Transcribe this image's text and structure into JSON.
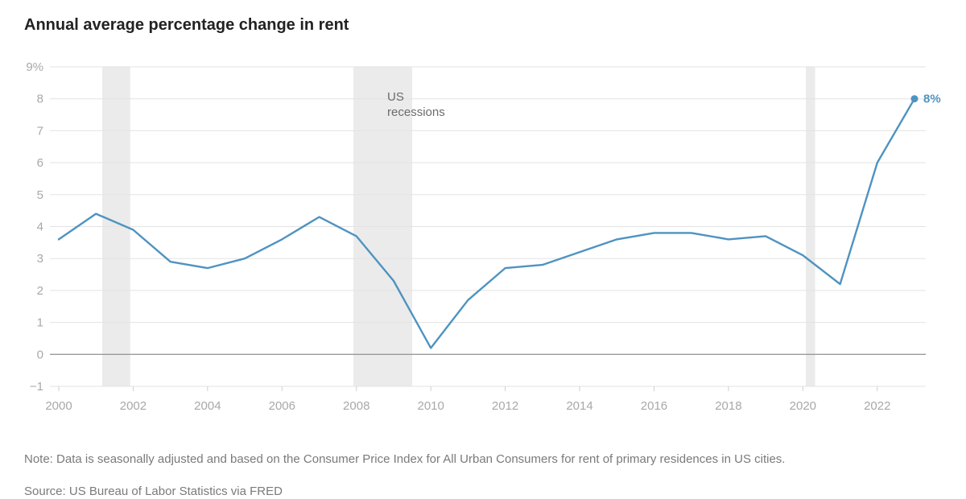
{
  "chart_data": {
    "type": "line",
    "title": "Annual average percentage change in rent",
    "xlabel": "",
    "ylabel": "",
    "xlim": [
      2000,
      2023.3
    ],
    "ylim": [
      -1,
      9
    ],
    "y_ticks": [
      {
        "value": -1,
        "label": "−1"
      },
      {
        "value": 0,
        "label": "0"
      },
      {
        "value": 1,
        "label": "1"
      },
      {
        "value": 2,
        "label": "2"
      },
      {
        "value": 3,
        "label": "3"
      },
      {
        "value": 4,
        "label": "4"
      },
      {
        "value": 5,
        "label": "5"
      },
      {
        "value": 6,
        "label": "6"
      },
      {
        "value": 7,
        "label": "7"
      },
      {
        "value": 8,
        "label": "8"
      },
      {
        "value": 9,
        "label": "9%"
      }
    ],
    "x_ticks": [
      2000,
      2002,
      2004,
      2006,
      2008,
      2010,
      2012,
      2014,
      2016,
      2018,
      2020,
      2022
    ],
    "series": [
      {
        "name": "Annual average percentage change in rent",
        "color": "#4f93c0",
        "x": [
          2000,
          2001,
          2002,
          2003,
          2004,
          2005,
          2006,
          2007,
          2008,
          2009,
          2010,
          2011,
          2012,
          2013,
          2014,
          2015,
          2016,
          2017,
          2018,
          2019,
          2020,
          2021,
          2022,
          2023
        ],
        "y": [
          3.6,
          4.4,
          3.9,
          2.9,
          2.7,
          3.0,
          3.6,
          4.3,
          3.7,
          2.3,
          0.2,
          1.7,
          2.7,
          2.8,
          3.2,
          3.6,
          3.8,
          3.8,
          3.6,
          3.7,
          3.1,
          2.2,
          6.0,
          8.0
        ]
      }
    ],
    "recessions": [
      {
        "start": 2001.17,
        "end": 2001.92
      },
      {
        "start": 2007.92,
        "end": 2009.5
      },
      {
        "start": 2020.08,
        "end": 2020.33
      }
    ],
    "recession_label": [
      "US",
      "recessions"
    ],
    "end_label": "8%",
    "grid": true,
    "zero_line_color": "#9a9a9a",
    "grid_color": "#e3e3e3",
    "recession_color": "#ebebeb"
  },
  "footer": {
    "note": "Note: Data is seasonally adjusted and based on the Consumer Price Index for All Urban Consumers for rent of primary residences in US cities.",
    "source": "Source: US Bureau of Labor Statistics via FRED"
  }
}
